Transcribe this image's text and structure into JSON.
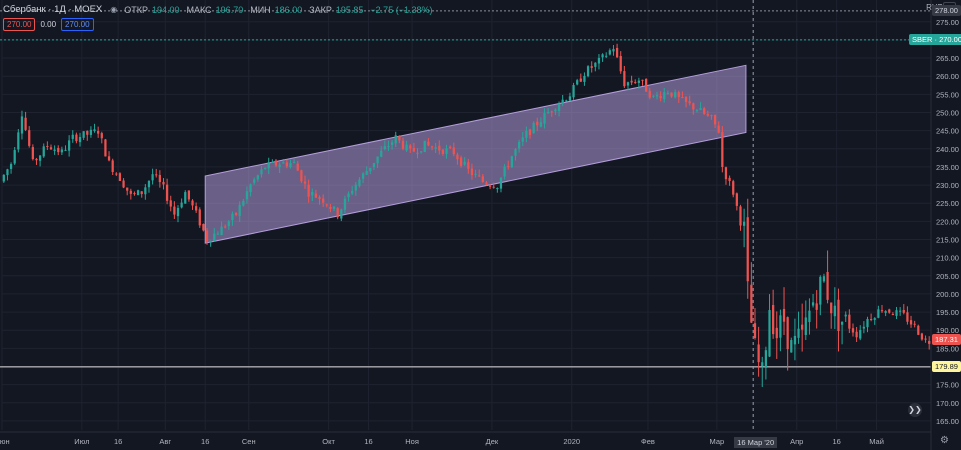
{
  "header": {
    "symbol": "Сбербанк · 1Д · MOEX",
    "ohlc": [
      {
        "label": "ОТКР",
        "value": "194.00"
      },
      {
        "label": "МАКС",
        "value": "196.70"
      },
      {
        "label": "МИН",
        "value": "186.00"
      },
      {
        "label": "ЗАКР",
        "value": "195.85"
      }
    ],
    "change": "−2.75 (−1.38%)"
  },
  "order_bar": {
    "sell": "270.00",
    "spread": "0.00",
    "buy": "270.00"
  },
  "currency": "RUB",
  "colors": {
    "background": "#131722",
    "up": "#26a69a",
    "down": "#ef5350",
    "channel": "#b39ddb",
    "grid": "#1f2330"
  },
  "chart_data": {
    "type": "candlestick",
    "y_ticks": [
      165,
      170,
      175,
      180,
      185,
      190,
      195,
      200,
      205,
      210,
      215,
      220,
      225,
      230,
      235,
      240,
      245,
      250,
      255,
      260,
      265,
      270,
      275
    ],
    "ylim": [
      162.5,
      281
    ],
    "x_labels": [
      {
        "label": "Июн",
        "x": 0
      },
      {
        "label": "Июл",
        "x": 22
      },
      {
        "label": "16",
        "x": 32
      },
      {
        "label": "Авг",
        "x": 45
      },
      {
        "label": "16",
        "x": 56
      },
      {
        "label": "Сен",
        "x": 68
      },
      {
        "label": "Окт",
        "x": 90
      },
      {
        "label": "16",
        "x": 101
      },
      {
        "label": "Ноя",
        "x": 113
      },
      {
        "label": "Дек",
        "x": 135
      },
      {
        "label": "2020",
        "x": 157
      },
      {
        "label": "Фев",
        "x": 178
      },
      {
        "label": "Мар",
        "x": 197
      },
      {
        "label": "Апр",
        "x": 219
      },
      {
        "label": "16",
        "x": 230
      },
      {
        "label": "Май",
        "x": 241
      }
    ],
    "xlim": [
      0,
      256
    ],
    "channel": {
      "x1": 56,
      "x2": 205,
      "upper": [
        232.5,
        263
      ],
      "lower": [
        214,
        244.5
      ]
    },
    "levels": [
      {
        "name": "SBER",
        "value": 270.0,
        "label": "SBER · 270.00",
        "color": "#26a69a",
        "style": "dashed"
      },
      {
        "name": "support",
        "value": 179.89,
        "label": "179.89",
        "color": "#e0e0e0",
        "style": "solid"
      },
      {
        "name": "top",
        "value": 278.0,
        "label": "278.00",
        "color": "#8a8f99",
        "style": "dashed"
      }
    ],
    "last_price_label": "187.31",
    "last_price": 187.31,
    "crosshair": {
      "x": 207,
      "label": "16 Мар '20"
    },
    "anchors": [
      [
        0,
        231
      ],
      [
        3,
        236
      ],
      [
        6,
        250
      ],
      [
        9,
        236
      ],
      [
        13,
        241
      ],
      [
        17,
        239
      ],
      [
        20,
        243
      ],
      [
        24,
        244
      ],
      [
        27,
        245
      ],
      [
        30,
        236
      ],
      [
        33,
        232
      ],
      [
        36,
        227
      ],
      [
        39,
        228
      ],
      [
        42,
        233
      ],
      [
        45,
        229
      ],
      [
        48,
        222
      ],
      [
        51,
        228
      ],
      [
        54,
        222
      ],
      [
        57,
        215
      ],
      [
        61,
        218
      ],
      [
        65,
        222
      ],
      [
        69,
        230
      ],
      [
        73,
        235
      ],
      [
        77,
        236
      ],
      [
        81,
        236
      ],
      [
        85,
        228
      ],
      [
        89,
        226
      ],
      [
        93,
        222
      ],
      [
        97,
        229
      ],
      [
        101,
        234
      ],
      [
        105,
        239
      ],
      [
        109,
        243
      ],
      [
        113,
        239
      ],
      [
        117,
        241
      ],
      [
        121,
        240
      ],
      [
        125,
        239
      ],
      [
        129,
        234
      ],
      [
        133,
        231
      ],
      [
        137,
        230
      ],
      [
        141,
        238
      ],
      [
        145,
        244
      ],
      [
        149,
        248
      ],
      [
        153,
        252
      ],
      [
        157,
        255
      ],
      [
        161,
        261
      ],
      [
        165,
        264
      ],
      [
        169,
        268
      ],
      [
        172,
        258
      ],
      [
        176,
        259
      ],
      [
        180,
        254
      ],
      [
        184,
        256
      ],
      [
        188,
        253
      ],
      [
        192,
        251
      ],
      [
        196,
        248
      ],
      [
        198,
        245
      ],
      [
        199,
        235
      ],
      [
        202,
        228
      ],
      [
        204,
        220
      ],
      [
        205,
        217
      ],
      [
        206,
        200
      ],
      [
        208,
        184
      ],
      [
        210,
        177
      ],
      [
        212,
        197
      ],
      [
        214,
        189
      ],
      [
        216,
        193
      ],
      [
        218,
        185
      ],
      [
        221,
        188
      ],
      [
        224,
        198
      ],
      [
        227,
        204
      ],
      [
        230,
        194
      ],
      [
        233,
        192
      ],
      [
        236,
        189
      ],
      [
        239,
        193
      ],
      [
        243,
        196
      ],
      [
        246,
        195
      ],
      [
        249,
        194
      ],
      [
        252,
        191
      ],
      [
        255,
        187
      ]
    ]
  }
}
